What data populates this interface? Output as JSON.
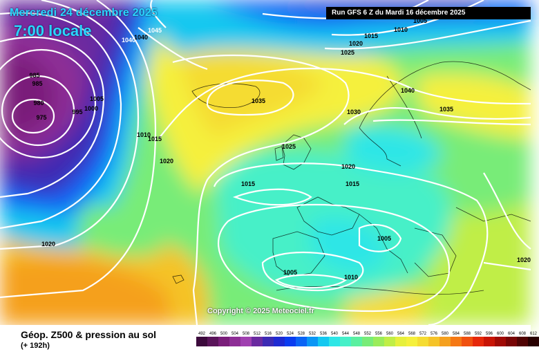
{
  "header": {
    "date": "Mercredi 24 décembre 2025",
    "time": "7:00 locale",
    "run": "Run GFS 6 Z du Mardi 16 décembre 2025"
  },
  "copyright": "Copyright © 2025 Meteociel.fr",
  "footer": {
    "title": "Géop. Z500 & pression au sol",
    "subtitle": "(+ 192h)"
  },
  "legend": {
    "values": [
      "492",
      "496",
      "500",
      "504",
      "508",
      "512",
      "516",
      "520",
      "524",
      "528",
      "532",
      "536",
      "540",
      "544",
      "548",
      "552",
      "556",
      "560",
      "564",
      "568",
      "572",
      "576",
      "580",
      "584",
      "588",
      "592",
      "596",
      "600",
      "604",
      "608",
      "612"
    ],
    "colors": [
      "#3c0a3c",
      "#5a145a",
      "#7a1e7a",
      "#8e2e96",
      "#a040b0",
      "#6a2aa0",
      "#3c2ab4",
      "#1e2ad2",
      "#0a3cf0",
      "#0a64f5",
      "#0a96f5",
      "#14c8f0",
      "#2ee6e6",
      "#46f0c8",
      "#5af0a0",
      "#78ec78",
      "#9aec5a",
      "#c0ee46",
      "#e6f03c",
      "#f5f03c",
      "#f5dc32",
      "#f5c328",
      "#f5a01e",
      "#f57814",
      "#f0500f",
      "#e6280a",
      "#c81405",
      "#a00a05",
      "#780505",
      "#500303",
      "#280000"
    ]
  },
  "map": {
    "isobars": [
      {
        "v": "1045",
        "w": true
      },
      {
        "v": "1040",
        "w": false
      },
      {
        "v": "1040",
        "w": true
      },
      {
        "v": "985",
        "w": false
      },
      {
        "v": "985",
        "w": false
      },
      {
        "v": "980",
        "w": false
      },
      {
        "v": "975",
        "w": false
      },
      {
        "v": "995",
        "w": false
      },
      {
        "v": "1000",
        "w": false
      },
      {
        "v": "1005",
        "w": false
      },
      {
        "v": "1010",
        "w": false
      },
      {
        "v": "1015",
        "w": false
      },
      {
        "v": "1020",
        "w": false
      },
      {
        "v": "1020",
        "w": false
      },
      {
        "v": "1005",
        "w": false
      },
      {
        "v": "1010",
        "w": false
      },
      {
        "v": "1015",
        "w": false
      },
      {
        "v": "1020",
        "w": false
      },
      {
        "v": "1025",
        "w": false
      },
      {
        "v": "1035",
        "w": false
      },
      {
        "v": "1040",
        "w": false
      },
      {
        "v": "1030",
        "w": false
      },
      {
        "v": "1035",
        "w": false
      },
      {
        "v": "1025",
        "w": false
      },
      {
        "v": "1020",
        "w": false
      },
      {
        "v": "1015",
        "w": false
      },
      {
        "v": "1015",
        "w": false
      },
      {
        "v": "1005",
        "w": false
      },
      {
        "v": "1005",
        "w": false
      },
      {
        "v": "1010",
        "w": false
      },
      {
        "v": "1020",
        "w": false
      }
    ]
  }
}
